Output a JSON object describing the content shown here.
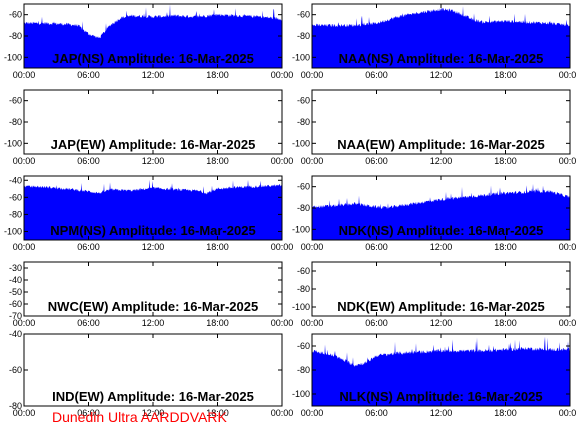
{
  "footer": {
    "text": "Dunedin Ultra AARDDVARK",
    "color": "#ff0000"
  },
  "colors": {
    "signal": "#0000ff",
    "frame": "#000000",
    "background": "#ffffff"
  },
  "chart_data": [
    {
      "type": "area",
      "id": "jap-ns",
      "title": "JAP(NS) Amplitude: 16-Mar-2025",
      "xlim": [
        "00:00",
        "24:00"
      ],
      "x_ticks": [
        "00:00",
        "06:00",
        "12:00",
        "18:00",
        "00:00"
      ],
      "ylim": [
        -110,
        -50
      ],
      "y_ticks": [
        -60,
        -80,
        -100
      ],
      "series": [
        {
          "x": [
            0,
            2,
            4,
            5,
            6,
            7,
            8,
            9,
            10,
            12,
            14,
            16,
            18,
            20,
            22,
            24
          ],
          "top": [
            -68,
            -68,
            -69,
            -70,
            -78,
            -82,
            -70,
            -63,
            -61,
            -62,
            -61,
            -62,
            -60,
            -61,
            -62,
            -64
          ],
          "bottom": [
            -110,
            -110,
            -110,
            -110,
            -110,
            -110,
            -110,
            -110,
            -110,
            -110,
            -110,
            -110,
            -110,
            -110,
            -110,
            -110
          ]
        }
      ]
    },
    {
      "type": "area",
      "id": "naa-ns",
      "title": "NAA(NS) Amplitude: 16-Mar-2025",
      "xlim": [
        "00:00",
        "24:00"
      ],
      "x_ticks": [
        "00:00",
        "06:00",
        "12:00",
        "18:00",
        "00:00"
      ],
      "ylim": [
        -110,
        -50
      ],
      "y_ticks": [
        -60,
        -80,
        -100
      ],
      "series": [
        {
          "x": [
            0,
            2,
            4,
            6,
            8,
            10,
            12,
            13,
            14,
            15,
            16,
            18,
            20,
            22,
            24
          ],
          "top": [
            -70,
            -70,
            -70,
            -68,
            -62,
            -58,
            -55,
            -56,
            -60,
            -65,
            -67,
            -66,
            -67,
            -68,
            -70
          ],
          "bottom": [
            -110,
            -110,
            -110,
            -110,
            -110,
            -110,
            -110,
            -110,
            -110,
            -110,
            -110,
            -110,
            -110,
            -110,
            -110
          ]
        }
      ]
    },
    {
      "type": "area",
      "id": "jap-ew",
      "title": "JAP(EW) Amplitude: 16-Mar-2025",
      "xlim": [
        "00:00",
        "24:00"
      ],
      "x_ticks": [
        "00:00",
        "06:00",
        "12:00",
        "18:00",
        "00:00"
      ],
      "ylim": [
        -110,
        -50
      ],
      "y_ticks": [
        -60,
        -80,
        -100
      ],
      "series": []
    },
    {
      "type": "area",
      "id": "naa-ew",
      "title": "NAA(EW) Amplitude: 16-Mar-2025",
      "xlim": [
        "00:00",
        "24:00"
      ],
      "x_ticks": [
        "00:00",
        "06:00",
        "12:00",
        "18:00",
        "00:00"
      ],
      "ylim": [
        -110,
        -50
      ],
      "y_ticks": [
        -60,
        -80,
        -100
      ],
      "series": []
    },
    {
      "type": "area",
      "id": "npm-ns",
      "title": "NPM(NS) Amplitude: 16-Mar-2025",
      "xlim": [
        "00:00",
        "24:00"
      ],
      "x_ticks": [
        "00:00",
        "06:00",
        "12:00",
        "18:00",
        "00:00"
      ],
      "ylim": [
        -110,
        -35
      ],
      "y_ticks": [
        -40,
        -60,
        -80,
        -100
      ],
      "series": [
        {
          "x": [
            0,
            2,
            4,
            6,
            7,
            8,
            10,
            12,
            14,
            16,
            17,
            18,
            20,
            22,
            24
          ],
          "top": [
            -47,
            -48,
            -50,
            -53,
            -55,
            -51,
            -52,
            -49,
            -51,
            -52,
            -55,
            -50,
            -48,
            -47,
            -46
          ],
          "bottom": [
            -110,
            -110,
            -110,
            -110,
            -110,
            -110,
            -110,
            -110,
            -110,
            -110,
            -110,
            -110,
            -110,
            -110,
            -110
          ]
        }
      ]
    },
    {
      "type": "area",
      "id": "ndk-ns",
      "title": "NDK(NS) Amplitude: 16-Mar-2025",
      "xlim": [
        "00:00",
        "24:00"
      ],
      "x_ticks": [
        "00:00",
        "06:00",
        "12:00",
        "18:00",
        "00:00"
      ],
      "ylim": [
        -110,
        -50
      ],
      "y_ticks": [
        -60,
        -80,
        -100
      ],
      "series": [
        {
          "x": [
            0,
            2,
            4,
            6,
            7,
            8,
            10,
            12,
            14,
            16,
            18,
            20,
            22,
            24
          ],
          "top": [
            -79,
            -78,
            -76,
            -79,
            -80,
            -78,
            -75,
            -72,
            -70,
            -68,
            -66,
            -65,
            -64,
            -70
          ],
          "bottom": [
            -110,
            -110,
            -110,
            -110,
            -110,
            -110,
            -110,
            -110,
            -110,
            -110,
            -110,
            -110,
            -110,
            -110
          ]
        }
      ]
    },
    {
      "type": "area",
      "id": "nwc-ew",
      "title": "NWC(EW) Amplitude: 16-Mar-2025",
      "xlim": [
        "00:00",
        "24:00"
      ],
      "x_ticks": [
        "00:00",
        "06:00",
        "12:00",
        "18:00",
        "00:00"
      ],
      "ylim": [
        -70,
        -25
      ],
      "y_ticks": [
        -30,
        -40,
        -50,
        -60,
        -70
      ],
      "series": []
    },
    {
      "type": "area",
      "id": "ndk-ew",
      "title": "NDK(EW) Amplitude: 16-Mar-2025",
      "xlim": [
        "00:00",
        "24:00"
      ],
      "x_ticks": [
        "00:00",
        "06:00",
        "12:00",
        "18:00",
        "00:00"
      ],
      "ylim": [
        -110,
        -50
      ],
      "y_ticks": [
        -60,
        -80,
        -100
      ],
      "series": []
    },
    {
      "type": "area",
      "id": "ind-ew",
      "title": "IND(EW) Amplitude: 16-Mar-2025",
      "xlim": [
        "00:00",
        "24:00"
      ],
      "x_ticks": [
        "00:00",
        "06:00",
        "12:00",
        "18:00",
        "00:00"
      ],
      "ylim": [
        -80,
        -40
      ],
      "y_ticks": [
        -40,
        -60,
        -80
      ],
      "series": []
    },
    {
      "type": "area",
      "id": "nlk-ns",
      "title": "NLK(NS) Amplitude: 16-Mar-2025",
      "xlim": [
        "00:00",
        "24:00"
      ],
      "x_ticks": [
        "00:00",
        "06:00",
        "12:00",
        "18:00",
        "00:00"
      ],
      "ylim": [
        -110,
        -50
      ],
      "y_ticks": [
        -60,
        -80,
        -100
      ],
      "series": [
        {
          "x": [
            0,
            2,
            3,
            4,
            5,
            6,
            8,
            10,
            12,
            14,
            16,
            18,
            20,
            22,
            24
          ],
          "top": [
            -64,
            -68,
            -72,
            -76,
            -74,
            -68,
            -66,
            -65,
            -64,
            -64,
            -64,
            -63,
            -62,
            -63,
            -63
          ],
          "bottom": [
            -110,
            -110,
            -110,
            -110,
            -110,
            -110,
            -110,
            -110,
            -110,
            -110,
            -110,
            -110,
            -110,
            -110,
            -110
          ]
        }
      ]
    }
  ]
}
